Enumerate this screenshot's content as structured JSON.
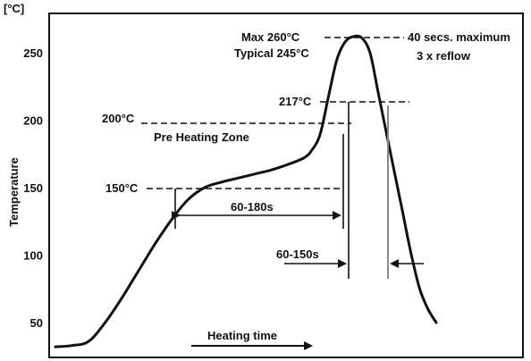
{
  "chart_data": {
    "type": "line",
    "title": "",
    "xlabel": "Heating time",
    "ylabel": "Temperature",
    "y_unit": "[°C]",
    "ylim": [
      30,
      275
    ],
    "y_ticks": [
      50,
      100,
      150,
      200,
      250
    ],
    "grid": false,
    "series": [
      {
        "x": [
          0,
          2,
          4,
          6,
          8,
          10,
          12,
          14,
          16,
          18,
          20,
          22,
          24,
          26,
          28,
          30,
          31,
          32,
          33,
          34,
          35,
          36,
          37,
          38,
          39,
          40,
          41,
          42,
          43,
          44,
          45,
          46
        ],
        "y": [
          32,
          33,
          36,
          50,
          68,
          88,
          108,
          126,
          141,
          150,
          154,
          157,
          160,
          163,
          167,
          172,
          178,
          190,
          218,
          245,
          258,
          262,
          261,
          250,
          220,
          190,
          160,
          130,
          100,
          75,
          60,
          50
        ]
      }
    ],
    "annotations": {
      "max": "Max 260°C",
      "typical": "Typical 245°C",
      "max_time": "40 secs. maximum",
      "reflow": "3 x reflow",
      "t217": "217°C",
      "t200": "200°C",
      "preheat": "Pre Heating Zone",
      "t150": "150°C",
      "preheat_time": "60-180s",
      "reflow_time": "60-150s"
    }
  }
}
